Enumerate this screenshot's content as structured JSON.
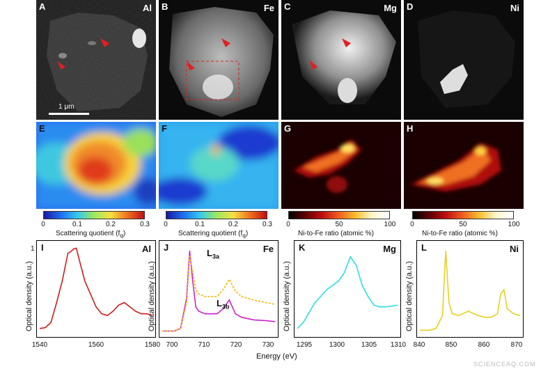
{
  "top_row": [
    {
      "letter": "A",
      "element": "Al"
    },
    {
      "letter": "B",
      "element": "Fe"
    },
    {
      "letter": "C",
      "element": "Mg"
    },
    {
      "letter": "D",
      "element": "Ni"
    }
  ],
  "scale_bar_label": "1 μm",
  "middle_row": [
    {
      "letter": "E"
    },
    {
      "letter": "F"
    },
    {
      "letter": "G"
    },
    {
      "letter": "H"
    }
  ],
  "colorbars": [
    {
      "ticks": [
        "0",
        "0.1",
        "0.2",
        "0.3"
      ],
      "title": "Scattering quotient (f",
      "title_sub": "q",
      "title_end": ")"
    },
    {
      "ticks": [
        "0",
        "0.1",
        "0.2",
        "0.3"
      ],
      "title": "Scattering quotient (f",
      "title_sub": "q",
      "title_end": ")"
    },
    {
      "ticks": [
        "0",
        "50",
        "100"
      ],
      "title": "Ni-to-Fe ratio (atomic %)"
    },
    {
      "ticks": [
        "0",
        "50",
        "100"
      ],
      "title": "Ni-to-Fe ratio (atomic %)"
    }
  ],
  "spectra": [
    {
      "letter": "I",
      "element": "Al",
      "ylabel": "Optical density (a.u.)",
      "ytick": "1",
      "xticks": [
        "1540",
        "1560",
        "1580"
      ]
    },
    {
      "letter": "J",
      "element": "Fe",
      "ylabel": "Optical density (a.u.)",
      "xticks": [
        "700",
        "710",
        "720",
        "730"
      ],
      "l3a": "L",
      "l3a_sub": "3a",
      "l3b": "L",
      "l3b_sub": "3b"
    },
    {
      "letter": "K",
      "element": "Mg",
      "ylabel": "Optical density (a.u.)",
      "xticks": [
        "1295",
        "1300",
        "1305",
        "1310"
      ]
    },
    {
      "letter": "L",
      "element": "Ni",
      "ylabel": "Optical density (a.u.)",
      "xticks": [
        "840",
        "850",
        "860",
        "870"
      ]
    }
  ],
  "xlabel": "Energy (eV)",
  "watermark": "SCIENCEAQ.COM",
  "colors": {
    "al": "#d01c1c",
    "fe_solid": "#cc22cc",
    "fe_dash": "#f5b800",
    "mg": "#2ee0e0",
    "ni": "#e8d020",
    "arrow": "#e02020"
  },
  "chart_data": [
    {
      "type": "line",
      "panel": "I",
      "x": [
        1540,
        1542,
        1544,
        1546,
        1548,
        1550,
        1551,
        1552,
        1553,
        1554,
        1556,
        1558,
        1560,
        1562,
        1564,
        1566,
        1568,
        1570,
        1572,
        1574,
        1576,
        1578,
        1580
      ],
      "values": [
        0.05,
        0.06,
        0.12,
        0.35,
        0.6,
        0.92,
        0.94,
        0.97,
        0.98,
        0.85,
        0.6,
        0.45,
        0.3,
        0.22,
        0.2,
        0.25,
        0.32,
        0.35,
        0.3,
        0.25,
        0.22,
        0.22,
        0.2
      ]
    },
    {
      "type": "line",
      "panel": "J",
      "series": [
        {
          "x": [
            696,
            700,
            702,
            704,
            705,
            706,
            707,
            708,
            710,
            714,
            716,
            718,
            719,
            720,
            722,
            726,
            730,
            733
          ],
          "values": [
            0.02,
            0.02,
            0.05,
            0.4,
            0.95,
            0.6,
            0.3,
            0.25,
            0.22,
            0.22,
            0.28,
            0.38,
            0.3,
            0.22,
            0.18,
            0.15,
            0.14,
            0.13
          ]
        },
        {
          "x": [
            696,
            700,
            702,
            704,
            705,
            706,
            707,
            708,
            710,
            714,
            716,
            718,
            719,
            720,
            722,
            726,
            730,
            733
          ],
          "values": [
            0.02,
            0.02,
            0.05,
            0.35,
            0.9,
            0.7,
            0.5,
            0.45,
            0.42,
            0.42,
            0.5,
            0.62,
            0.55,
            0.48,
            0.42,
            0.38,
            0.35,
            0.33
          ]
        }
      ]
    },
    {
      "type": "line",
      "panel": "K",
      "x": [
        1293,
        1294,
        1296,
        1298,
        1299,
        1300,
        1301,
        1302,
        1303,
        1304,
        1305,
        1306,
        1307,
        1308,
        1310
      ],
      "values": [
        0.05,
        0.12,
        0.35,
        0.5,
        0.55,
        0.6,
        0.7,
        0.88,
        0.78,
        0.55,
        0.42,
        0.32,
        0.3,
        0.3,
        0.32
      ]
    },
    {
      "type": "line",
      "panel": "L",
      "x": [
        840,
        843,
        845,
        847,
        848,
        849,
        850,
        852,
        855,
        858,
        860,
        862,
        864,
        865,
        866,
        867,
        869,
        871
      ],
      "values": [
        0.03,
        0.03,
        0.05,
        0.2,
        0.95,
        0.35,
        0.22,
        0.2,
        0.25,
        0.2,
        0.18,
        0.18,
        0.22,
        0.45,
        0.5,
        0.28,
        0.22,
        0.2
      ]
    }
  ]
}
